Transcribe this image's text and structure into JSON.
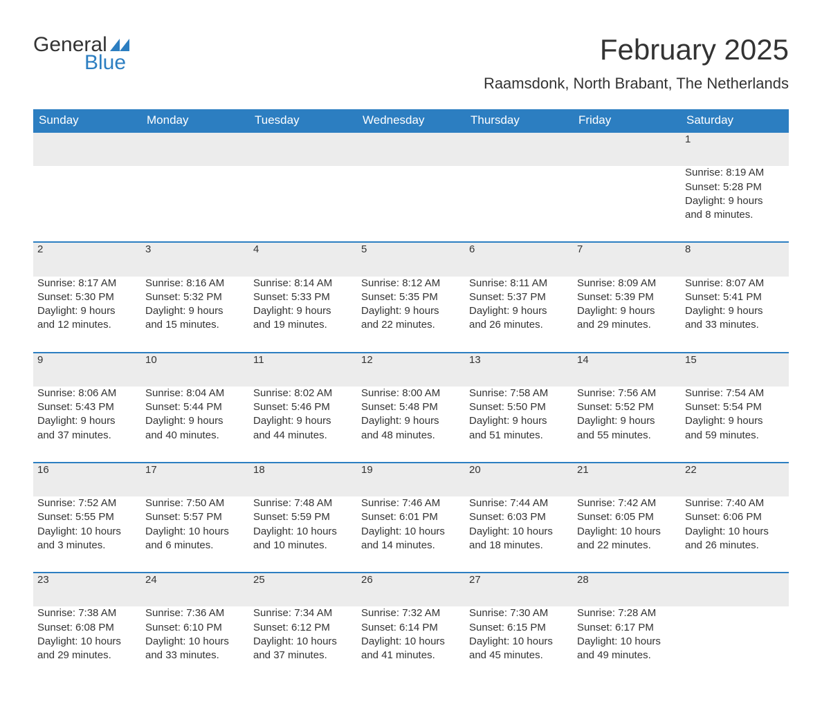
{
  "logo": {
    "text1": "General",
    "text2": "Blue"
  },
  "title": "February 2025",
  "location": "Raamsdonk, North Brabant, The Netherlands",
  "colors": {
    "header_bg": "#2c7ec1",
    "header_text": "#ffffff",
    "daynum_bg": "#ececec",
    "daynum_border": "#2c7ec1",
    "body_text": "#333333",
    "logo_blue": "#2c7ec1"
  },
  "weekday_headers": [
    "Sunday",
    "Monday",
    "Tuesday",
    "Wednesday",
    "Thursday",
    "Friday",
    "Saturday"
  ],
  "weeks": [
    [
      null,
      null,
      null,
      null,
      null,
      null,
      {
        "day": "1",
        "sunrise": "Sunrise: 8:19 AM",
        "sunset": "Sunset: 5:28 PM",
        "daylight1": "Daylight: 9 hours",
        "daylight2": "and 8 minutes."
      }
    ],
    [
      {
        "day": "2",
        "sunrise": "Sunrise: 8:17 AM",
        "sunset": "Sunset: 5:30 PM",
        "daylight1": "Daylight: 9 hours",
        "daylight2": "and 12 minutes."
      },
      {
        "day": "3",
        "sunrise": "Sunrise: 8:16 AM",
        "sunset": "Sunset: 5:32 PM",
        "daylight1": "Daylight: 9 hours",
        "daylight2": "and 15 minutes."
      },
      {
        "day": "4",
        "sunrise": "Sunrise: 8:14 AM",
        "sunset": "Sunset: 5:33 PM",
        "daylight1": "Daylight: 9 hours",
        "daylight2": "and 19 minutes."
      },
      {
        "day": "5",
        "sunrise": "Sunrise: 8:12 AM",
        "sunset": "Sunset: 5:35 PM",
        "daylight1": "Daylight: 9 hours",
        "daylight2": "and 22 minutes."
      },
      {
        "day": "6",
        "sunrise": "Sunrise: 8:11 AM",
        "sunset": "Sunset: 5:37 PM",
        "daylight1": "Daylight: 9 hours",
        "daylight2": "and 26 minutes."
      },
      {
        "day": "7",
        "sunrise": "Sunrise: 8:09 AM",
        "sunset": "Sunset: 5:39 PM",
        "daylight1": "Daylight: 9 hours",
        "daylight2": "and 29 minutes."
      },
      {
        "day": "8",
        "sunrise": "Sunrise: 8:07 AM",
        "sunset": "Sunset: 5:41 PM",
        "daylight1": "Daylight: 9 hours",
        "daylight2": "and 33 minutes."
      }
    ],
    [
      {
        "day": "9",
        "sunrise": "Sunrise: 8:06 AM",
        "sunset": "Sunset: 5:43 PM",
        "daylight1": "Daylight: 9 hours",
        "daylight2": "and 37 minutes."
      },
      {
        "day": "10",
        "sunrise": "Sunrise: 8:04 AM",
        "sunset": "Sunset: 5:44 PM",
        "daylight1": "Daylight: 9 hours",
        "daylight2": "and 40 minutes."
      },
      {
        "day": "11",
        "sunrise": "Sunrise: 8:02 AM",
        "sunset": "Sunset: 5:46 PM",
        "daylight1": "Daylight: 9 hours",
        "daylight2": "and 44 minutes."
      },
      {
        "day": "12",
        "sunrise": "Sunrise: 8:00 AM",
        "sunset": "Sunset: 5:48 PM",
        "daylight1": "Daylight: 9 hours",
        "daylight2": "and 48 minutes."
      },
      {
        "day": "13",
        "sunrise": "Sunrise: 7:58 AM",
        "sunset": "Sunset: 5:50 PM",
        "daylight1": "Daylight: 9 hours",
        "daylight2": "and 51 minutes."
      },
      {
        "day": "14",
        "sunrise": "Sunrise: 7:56 AM",
        "sunset": "Sunset: 5:52 PM",
        "daylight1": "Daylight: 9 hours",
        "daylight2": "and 55 minutes."
      },
      {
        "day": "15",
        "sunrise": "Sunrise: 7:54 AM",
        "sunset": "Sunset: 5:54 PM",
        "daylight1": "Daylight: 9 hours",
        "daylight2": "and 59 minutes."
      }
    ],
    [
      {
        "day": "16",
        "sunrise": "Sunrise: 7:52 AM",
        "sunset": "Sunset: 5:55 PM",
        "daylight1": "Daylight: 10 hours",
        "daylight2": "and 3 minutes."
      },
      {
        "day": "17",
        "sunrise": "Sunrise: 7:50 AM",
        "sunset": "Sunset: 5:57 PM",
        "daylight1": "Daylight: 10 hours",
        "daylight2": "and 6 minutes."
      },
      {
        "day": "18",
        "sunrise": "Sunrise: 7:48 AM",
        "sunset": "Sunset: 5:59 PM",
        "daylight1": "Daylight: 10 hours",
        "daylight2": "and 10 minutes."
      },
      {
        "day": "19",
        "sunrise": "Sunrise: 7:46 AM",
        "sunset": "Sunset: 6:01 PM",
        "daylight1": "Daylight: 10 hours",
        "daylight2": "and 14 minutes."
      },
      {
        "day": "20",
        "sunrise": "Sunrise: 7:44 AM",
        "sunset": "Sunset: 6:03 PM",
        "daylight1": "Daylight: 10 hours",
        "daylight2": "and 18 minutes."
      },
      {
        "day": "21",
        "sunrise": "Sunrise: 7:42 AM",
        "sunset": "Sunset: 6:05 PM",
        "daylight1": "Daylight: 10 hours",
        "daylight2": "and 22 minutes."
      },
      {
        "day": "22",
        "sunrise": "Sunrise: 7:40 AM",
        "sunset": "Sunset: 6:06 PM",
        "daylight1": "Daylight: 10 hours",
        "daylight2": "and 26 minutes."
      }
    ],
    [
      {
        "day": "23",
        "sunrise": "Sunrise: 7:38 AM",
        "sunset": "Sunset: 6:08 PM",
        "daylight1": "Daylight: 10 hours",
        "daylight2": "and 29 minutes."
      },
      {
        "day": "24",
        "sunrise": "Sunrise: 7:36 AM",
        "sunset": "Sunset: 6:10 PM",
        "daylight1": "Daylight: 10 hours",
        "daylight2": "and 33 minutes."
      },
      {
        "day": "25",
        "sunrise": "Sunrise: 7:34 AM",
        "sunset": "Sunset: 6:12 PM",
        "daylight1": "Daylight: 10 hours",
        "daylight2": "and 37 minutes."
      },
      {
        "day": "26",
        "sunrise": "Sunrise: 7:32 AM",
        "sunset": "Sunset: 6:14 PM",
        "daylight1": "Daylight: 10 hours",
        "daylight2": "and 41 minutes."
      },
      {
        "day": "27",
        "sunrise": "Sunrise: 7:30 AM",
        "sunset": "Sunset: 6:15 PM",
        "daylight1": "Daylight: 10 hours",
        "daylight2": "and 45 minutes."
      },
      {
        "day": "28",
        "sunrise": "Sunrise: 7:28 AM",
        "sunset": "Sunset: 6:17 PM",
        "daylight1": "Daylight: 10 hours",
        "daylight2": "and 49 minutes."
      },
      null
    ]
  ]
}
